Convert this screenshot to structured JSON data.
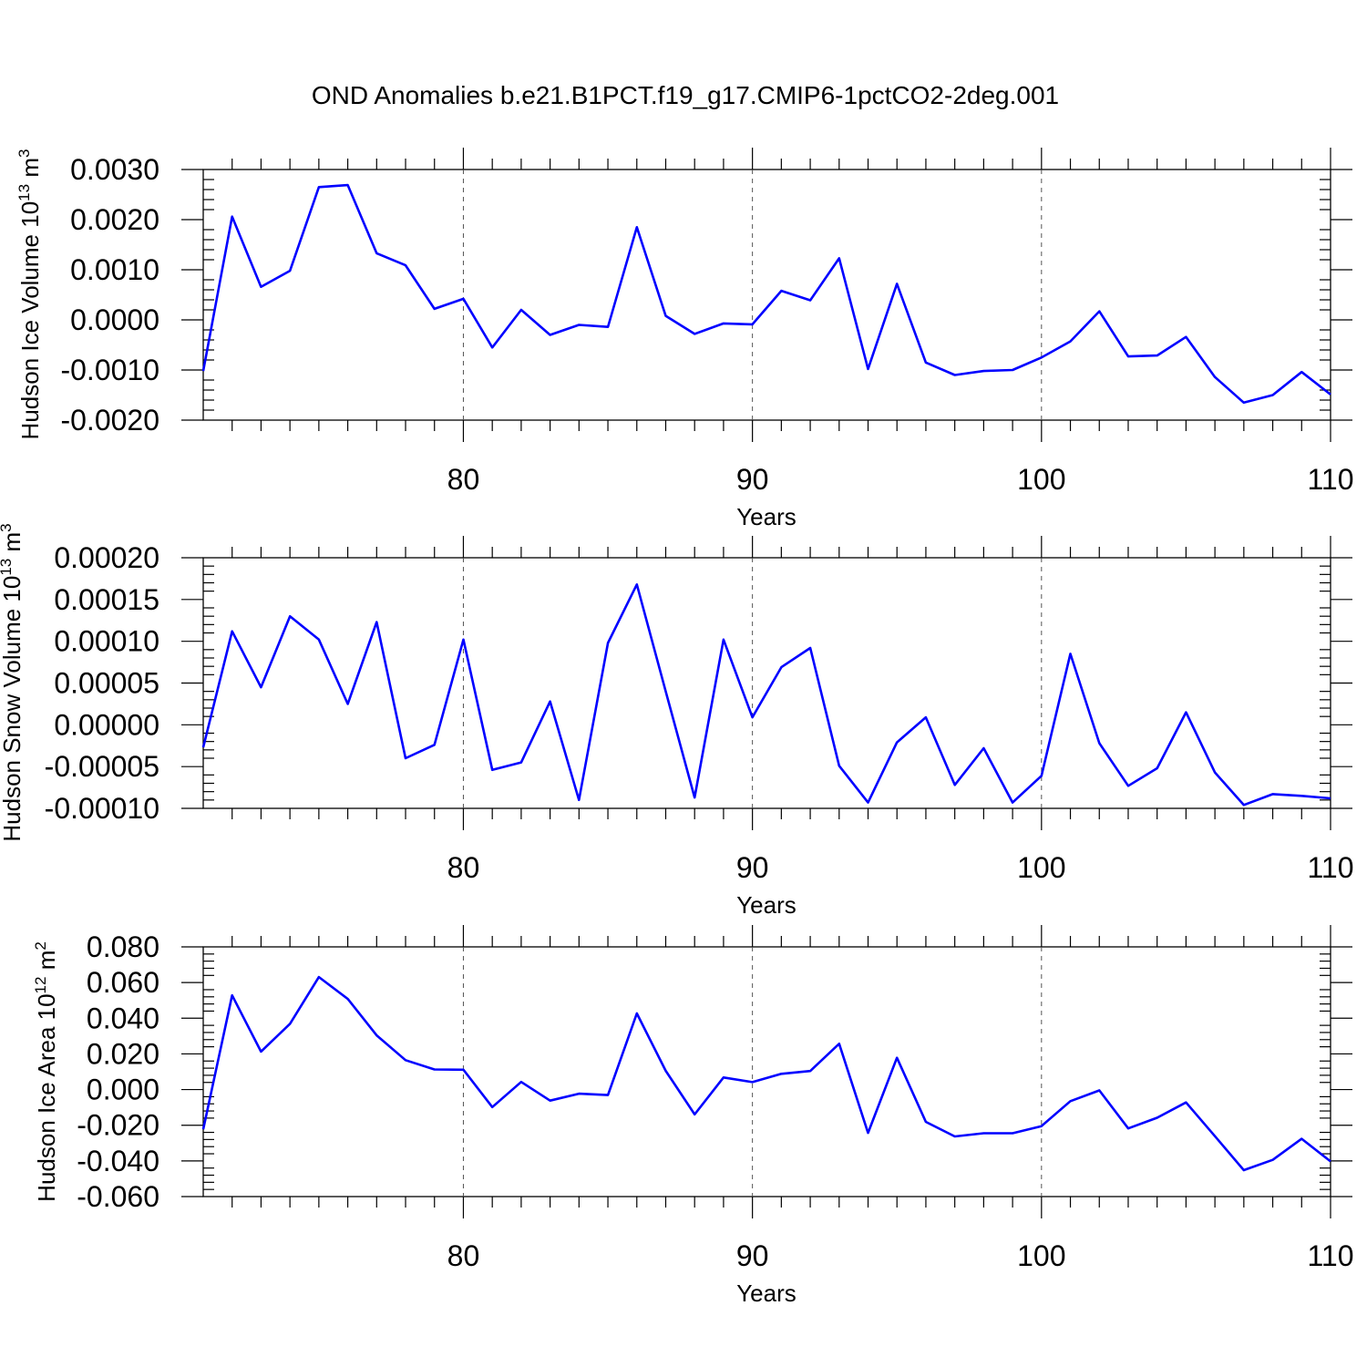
{
  "title": "OND Anomalies b.e21.B1PCT.f19_g17.CMIP6-1pctCO2-2deg.001",
  "chart_data": [
    {
      "type": "line",
      "ylabel": "Hudson Ice Volume",
      "ylabel_exp": "13",
      "ylabel_unit_exp": "3",
      "xlabel": "Years",
      "xlim": [
        71,
        110
      ],
      "ylim": [
        -0.002,
        0.003
      ],
      "yticks": [
        -0.002,
        -0.001,
        0.0,
        0.001,
        0.002,
        0.003
      ],
      "ytick_labels": [
        "-0.0020",
        "-0.0010",
        "0.0000",
        "0.0010",
        "0.0020",
        "0.0030"
      ],
      "xticks": [
        80,
        90,
        100,
        110
      ],
      "xtick_labels": [
        "80",
        "90",
        "100",
        "110"
      ],
      "grid_x": [
        80,
        90,
        100
      ],
      "series": [
        {
          "name": "Hudson Ice Volume",
          "color": "#0000ff",
          "x": [
            71,
            72,
            73,
            74,
            75,
            76,
            77,
            78,
            79,
            80,
            81,
            82,
            83,
            84,
            85,
            86,
            87,
            88,
            89,
            90,
            91,
            92,
            93,
            94,
            95,
            96,
            97,
            98,
            99,
            100,
            101,
            102,
            103,
            104,
            105,
            106,
            107,
            108,
            109,
            110
          ],
          "values": [
            -0.00102,
            0.00206,
            0.00066,
            0.00098,
            0.00265,
            0.00269,
            0.00133,
            0.00109,
            0.00022,
            0.00042,
            -0.00055,
            0.0002,
            -0.0003,
            -0.0001,
            -0.00014,
            0.00185,
            8e-05,
            -0.00028,
            -7e-05,
            -9e-05,
            0.00058,
            0.00039,
            0.00123,
            -0.00098,
            0.00072,
            -0.00085,
            -0.0011,
            -0.00102,
            -0.001,
            -0.00075,
            -0.00043,
            0.00017,
            -0.00073,
            -0.00071,
            -0.00034,
            -0.00114,
            -0.00165,
            -0.0015,
            -0.00104,
            -0.00149
          ]
        }
      ]
    },
    {
      "type": "line",
      "ylabel": "Hudson Snow Volume",
      "ylabel_exp": "13",
      "ylabel_unit_exp": "3",
      "xlabel": "Years",
      "xlim": [
        71,
        110
      ],
      "ylim": [
        -0.0001,
        0.0002
      ],
      "yticks": [
        -0.0001,
        -5e-05,
        0.0,
        5e-05,
        0.0001,
        0.00015,
        0.0002
      ],
      "ytick_labels": [
        "-0.00010",
        "-0.00005",
        "0.00000",
        "0.00005",
        "0.00010",
        "0.00015",
        "0.00020"
      ],
      "xticks": [
        80,
        90,
        100,
        110
      ],
      "xtick_labels": [
        "80",
        "90",
        "100",
        "110"
      ],
      "grid_x": [
        80,
        90,
        100
      ],
      "series": [
        {
          "name": "Hudson Snow Volume",
          "color": "#0000ff",
          "x": [
            71,
            72,
            73,
            74,
            75,
            76,
            77,
            78,
            79,
            80,
            81,
            82,
            83,
            84,
            85,
            86,
            87,
            88,
            89,
            90,
            91,
            92,
            93,
            94,
            95,
            96,
            97,
            98,
            99,
            100,
            101,
            102,
            103,
            104,
            105,
            106,
            107,
            108,
            109,
            110
          ],
          "values": [
            -2.7e-05,
            0.000112,
            4.5e-05,
            0.00013,
            0.000102,
            2.5e-05,
            0.000123,
            -4e-05,
            -2.4e-05,
            0.000102,
            -5.4e-05,
            -4.5e-05,
            2.8e-05,
            -9e-05,
            9.8e-05,
            0.000168,
            4e-05,
            -8.7e-05,
            0.000102,
            9e-06,
            6.9e-05,
            9.2e-05,
            -4.9e-05,
            -9.3e-05,
            -2.1e-05,
            9e-06,
            -7.2e-05,
            -2.8e-05,
            -9.3e-05,
            -6.1e-05,
            8.5e-05,
            -2.2e-05,
            -7.3e-05,
            -5.2e-05,
            1.5e-05,
            -5.7e-05,
            -9.6e-05,
            -8.3e-05,
            -8.5e-05,
            -8.8e-05
          ]
        }
      ]
    },
    {
      "type": "line",
      "ylabel": "Hudson Ice Area",
      "ylabel_exp": "12",
      "ylabel_unit_exp": "2",
      "xlabel": "Years",
      "xlim": [
        71,
        110
      ],
      "ylim": [
        -0.06,
        0.08
      ],
      "yticks": [
        -0.06,
        -0.04,
        -0.02,
        0.0,
        0.02,
        0.04,
        0.06,
        0.08
      ],
      "ytick_labels": [
        "-0.060",
        "-0.040",
        "-0.020",
        "0.000",
        "0.020",
        "0.040",
        "0.060",
        "0.080"
      ],
      "xticks": [
        80,
        90,
        100,
        110
      ],
      "xtick_labels": [
        "80",
        "90",
        "100",
        "110"
      ],
      "grid_x": [
        80,
        90,
        100
      ],
      "series": [
        {
          "name": "Hudson Ice Area",
          "color": "#0000ff",
          "x": [
            71,
            72,
            73,
            74,
            75,
            76,
            77,
            78,
            79,
            80,
            81,
            82,
            83,
            84,
            85,
            86,
            87,
            88,
            89,
            90,
            91,
            92,
            93,
            94,
            95,
            96,
            97,
            98,
            99,
            100,
            101,
            102,
            103,
            104,
            105,
            106,
            107,
            108,
            109,
            110
          ],
          "values": [
            -0.0223,
            0.0528,
            0.0213,
            0.0369,
            0.0631,
            0.0508,
            0.0304,
            0.0165,
            0.0113,
            0.0111,
            -0.0098,
            0.0043,
            -0.0062,
            -0.0023,
            -0.0031,
            0.0427,
            0.0105,
            -0.0139,
            0.0068,
            0.0042,
            0.0088,
            0.0104,
            0.0257,
            -0.0243,
            0.0178,
            -0.0181,
            -0.0263,
            -0.0245,
            -0.0245,
            -0.0205,
            -0.0065,
            -0.0005,
            -0.0218,
            -0.0158,
            -0.0072,
            -0.0261,
            -0.0452,
            -0.0394,
            -0.0276,
            -0.0403
          ]
        }
      ]
    }
  ]
}
